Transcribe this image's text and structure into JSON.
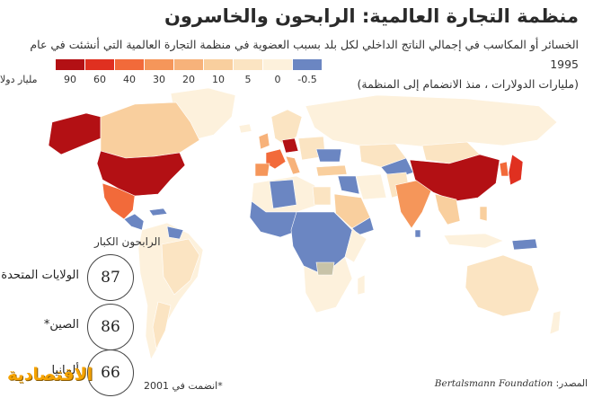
{
  "title": "منظمة التجارة العالمية: الرابحون والخاسرون",
  "subtitle_line1": "الخسائر أو المكاسب في إجمالي الناتج الداخلي لكل بلد بسبب العضوية في منظمة التجارة العالمية التي أنشئت في عام 1995",
  "subtitle_line2": "(مليارات الدولارات ، منذ الانضمام إلى المنظمة)",
  "legend": {
    "unit": "مليار دولا",
    "items": [
      {
        "label": "90",
        "color": "#b31014"
      },
      {
        "label": "60",
        "color": "#e03020"
      },
      {
        "label": "40",
        "color": "#f26a3a"
      },
      {
        "label": "30",
        "color": "#f5965a"
      },
      {
        "label": "20",
        "color": "#f7b27a"
      },
      {
        "label": "10",
        "color": "#f9cf9e"
      },
      {
        "label": "5",
        "color": "#fbe4c2"
      },
      {
        "label": "0",
        "color": "#fdf1dc"
      },
      {
        "label": "-0.5",
        "color": "#6b86c2"
      }
    ]
  },
  "winners": {
    "title": "الرابحون الكبار",
    "items": [
      {
        "country": "الولايات المتحدة",
        "value": "87"
      },
      {
        "country": "الصين*",
        "value": "86"
      },
      {
        "country": "ألمانيا",
        "value": "66"
      }
    ]
  },
  "footnote": "*انضمت في 2001",
  "source_label": "المصدر:",
  "source_org": "Bertalsmann Foundation",
  "logo": "الاقتصادية",
  "colors": {
    "ocean": "#ffffff",
    "land_default": "#fdf1dc",
    "top": "#b31014",
    "high": "#e03020",
    "mid": "#f26a3a",
    "loss": "#6b86c2",
    "border": "#ffffff"
  }
}
